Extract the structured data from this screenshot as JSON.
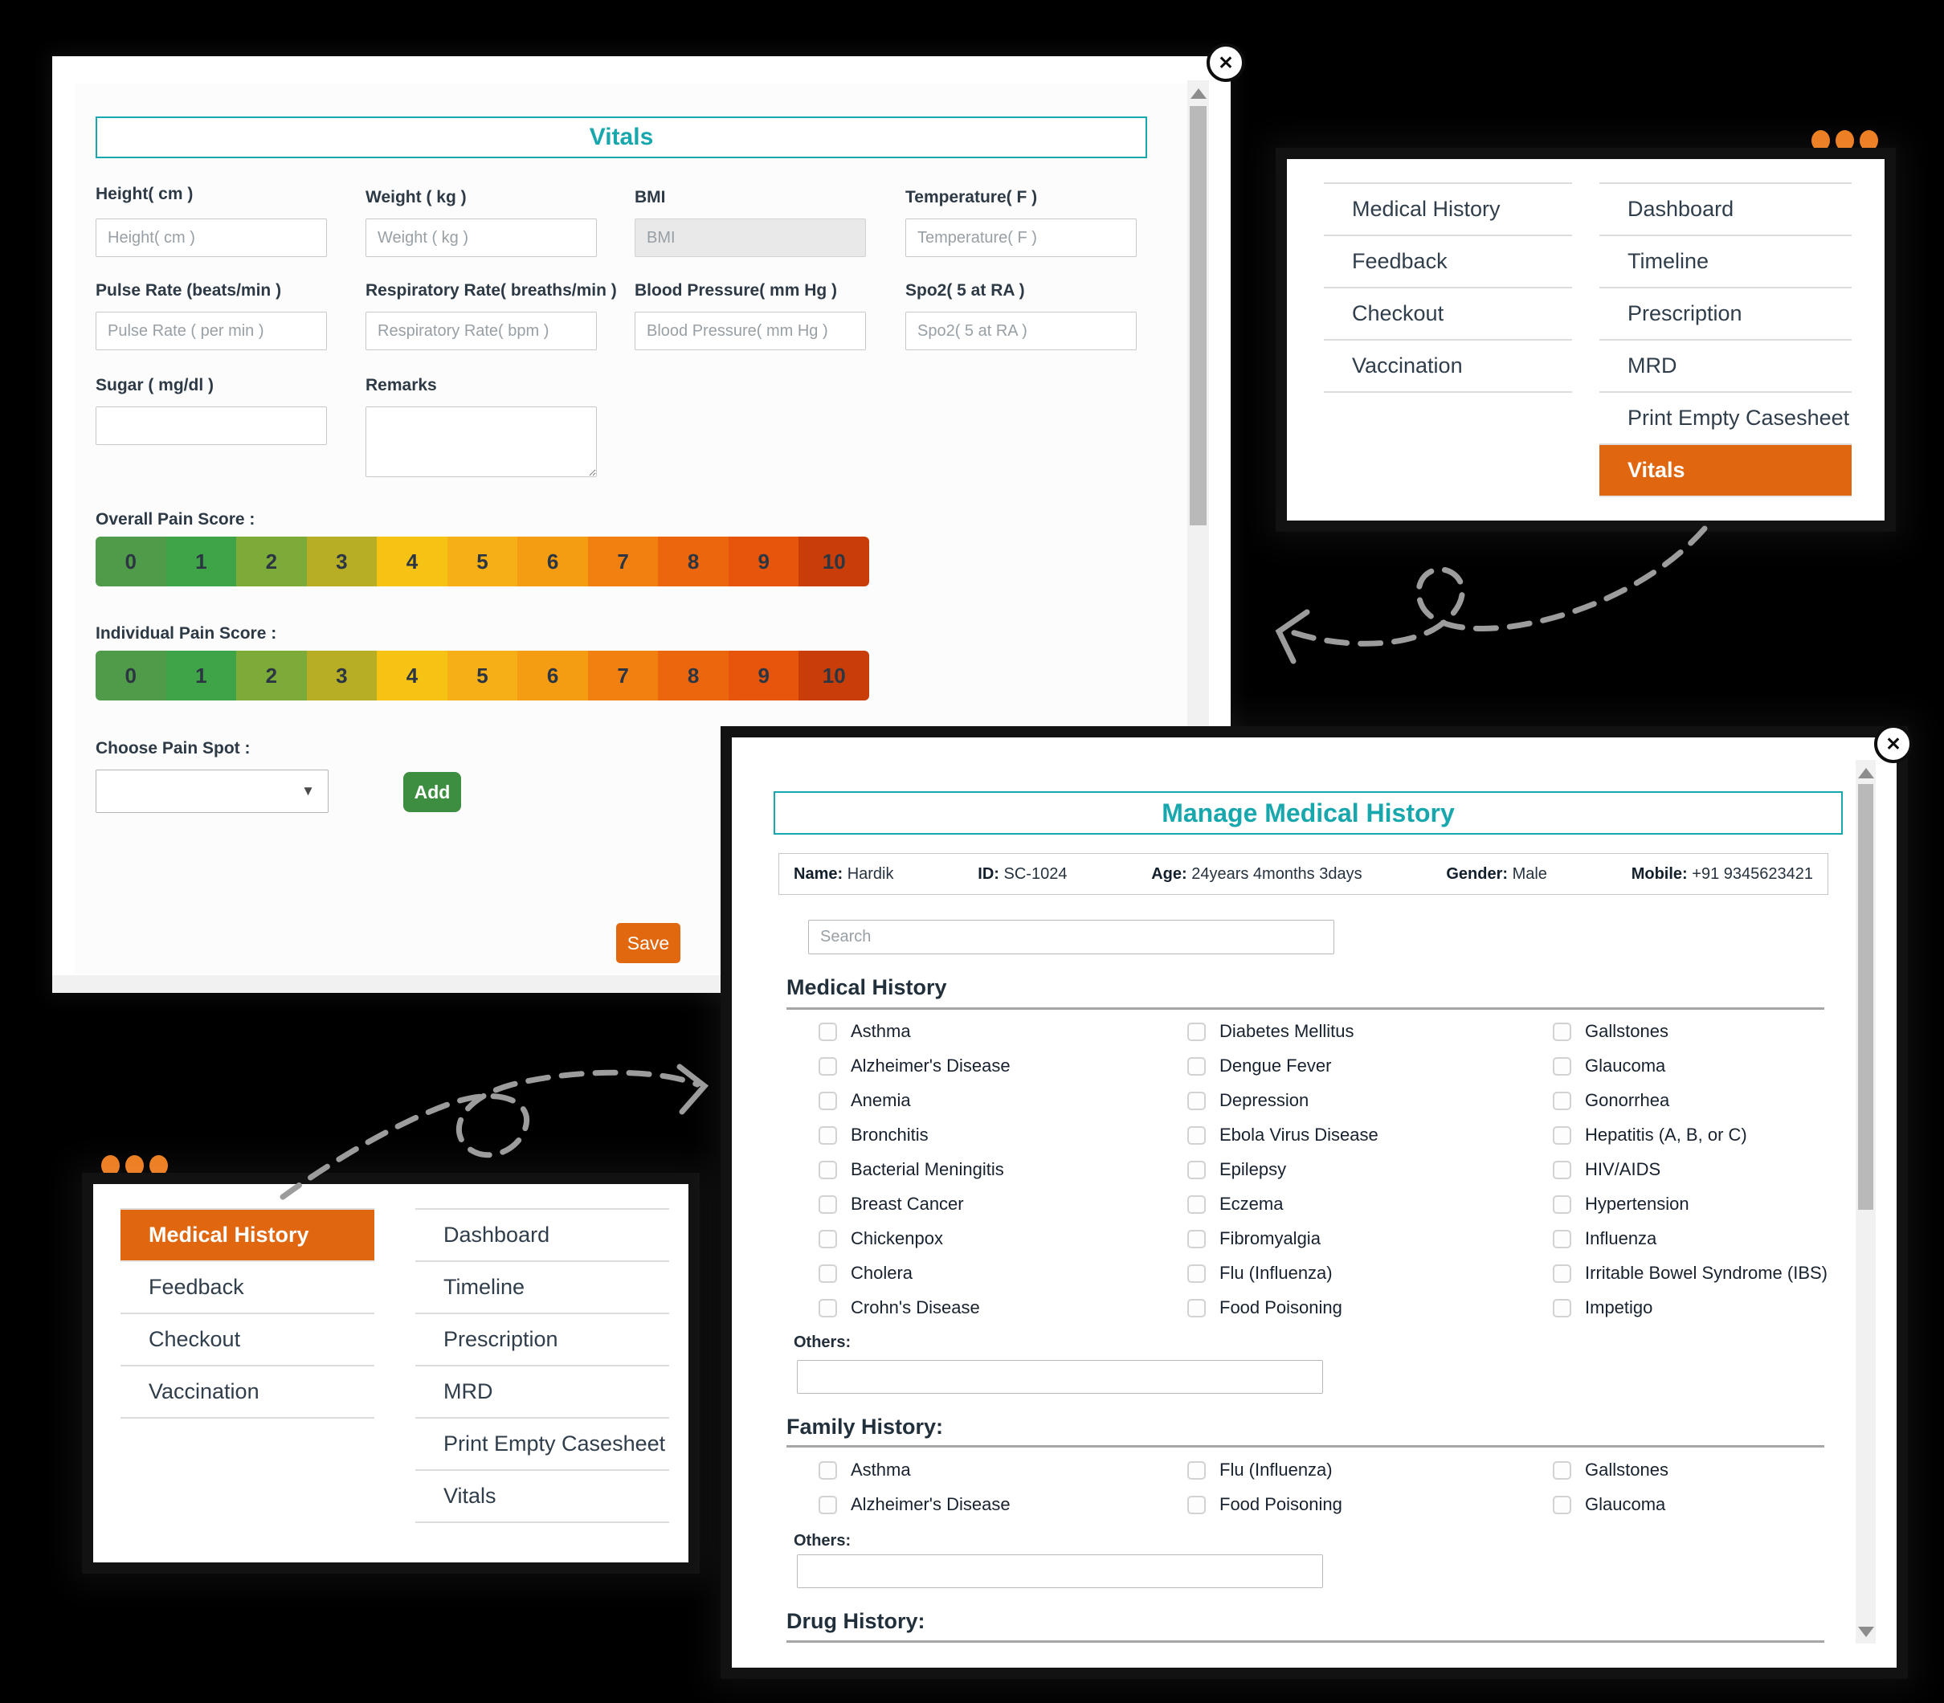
{
  "accent": {
    "teal": "#18a7ad",
    "menu_highlight_orange": "#e0660f",
    "decoration_dot_orange": "#ed7d20",
    "add_button_green": "#3e8e41",
    "save_button_orange": "#e2680f",
    "background": "#000000"
  },
  "icons": {
    "close": "✕",
    "select_arrow": "▼"
  },
  "vitals_window": {
    "title": "Vitals",
    "fields": [
      {
        "label": "Height( cm )",
        "placeholder": "Height( cm )"
      },
      {
        "label": "Weight ( kg )",
        "placeholder": "Weight ( kg )"
      },
      {
        "label": "BMI",
        "placeholder": "BMI"
      },
      {
        "label": "Temperature( F )",
        "placeholder": "Temperature( F )"
      },
      {
        "label": "Pulse Rate (beats/min )",
        "placeholder": "Pulse Rate ( per min )"
      },
      {
        "label": "Respiratory Rate( breaths/min )",
        "placeholder": "Respiratory Rate( bpm )"
      },
      {
        "label": "Blood Pressure( mm Hg )",
        "placeholder": "Blood Pressure( mm Hg )"
      },
      {
        "label": "Spo2( 5 at RA )",
        "placeholder": "Spo2( 5 at RA )"
      },
      {
        "label": "Sugar ( mg/dl )",
        "placeholder": ""
      },
      {
        "label": "Remarks",
        "placeholder": ""
      }
    ],
    "overall_pain_label": "Overall Pain Score :",
    "individual_pain_label": "Individual Pain Score :",
    "pain_scores": [
      "0",
      "1",
      "2",
      "3",
      "4",
      "5",
      "6",
      "7",
      "8",
      "9",
      "10"
    ],
    "pain_colors": [
      "#4f9b49",
      "#3ea447",
      "#7cab39",
      "#b7ae25",
      "#f6c214",
      "#f6af17",
      "#f59d12",
      "#f28011",
      "#ec660e",
      "#e7550c",
      "#c93e08"
    ],
    "choose_pain_spot_label": "Choose Pain Spot :",
    "add_button": "Add",
    "save_button": "Save"
  },
  "menus": {
    "left_items": [
      "Medical History",
      "Feedback",
      "Checkout",
      "Vaccination"
    ],
    "right_items": [
      "Dashboard",
      "Timeline",
      "Prescription",
      "MRD",
      "Print Empty Casesheet",
      "Vitals"
    ],
    "top_panel_active": "Vitals",
    "bottom_panel_active": "Medical History"
  },
  "medical_history_window": {
    "title": "Manage Medical History",
    "patient": {
      "name_label": "Name:",
      "name": "Hardik",
      "id_label": "ID:",
      "id": "SC-1024",
      "age_label": "Age:",
      "age": "24years 4months 3days",
      "gender_label": "Gender:",
      "gender": "Male",
      "mobile_label": "Mobile:",
      "mobile": "+91 9345623421"
    },
    "search_placeholder": "Search",
    "medical_history_title": "Medical History",
    "medical_history_columns": [
      [
        "Asthma",
        "Alzheimer's Disease",
        "Anemia",
        "Bronchitis",
        "Bacterial Meningitis",
        "Breast Cancer",
        "Chickenpox",
        "Cholera",
        "Crohn's Disease"
      ],
      [
        "Diabetes Mellitus",
        "Dengue Fever",
        "Depression",
        "Ebola Virus Disease",
        "Epilepsy",
        "Eczema",
        "Fibromyalgia",
        "Flu (Influenza)",
        "Food Poisoning"
      ],
      [
        "Gallstones",
        "Glaucoma",
        "Gonorrhea",
        "Hepatitis (A, B, or C)",
        "HIV/AIDS",
        "Hypertension",
        "Influenza",
        "Irritable Bowel Syndrome (IBS)",
        "Impetigo"
      ]
    ],
    "others_label": "Others:",
    "family_history_title": "Family History:",
    "family_history_columns": [
      [
        "Asthma",
        "Alzheimer's Disease"
      ],
      [
        "Flu (Influenza)",
        "Food Poisoning"
      ],
      [
        "Gallstones",
        "Glaucoma"
      ]
    ],
    "family_others_label": "Others:",
    "drug_history_title": "Drug History:"
  }
}
